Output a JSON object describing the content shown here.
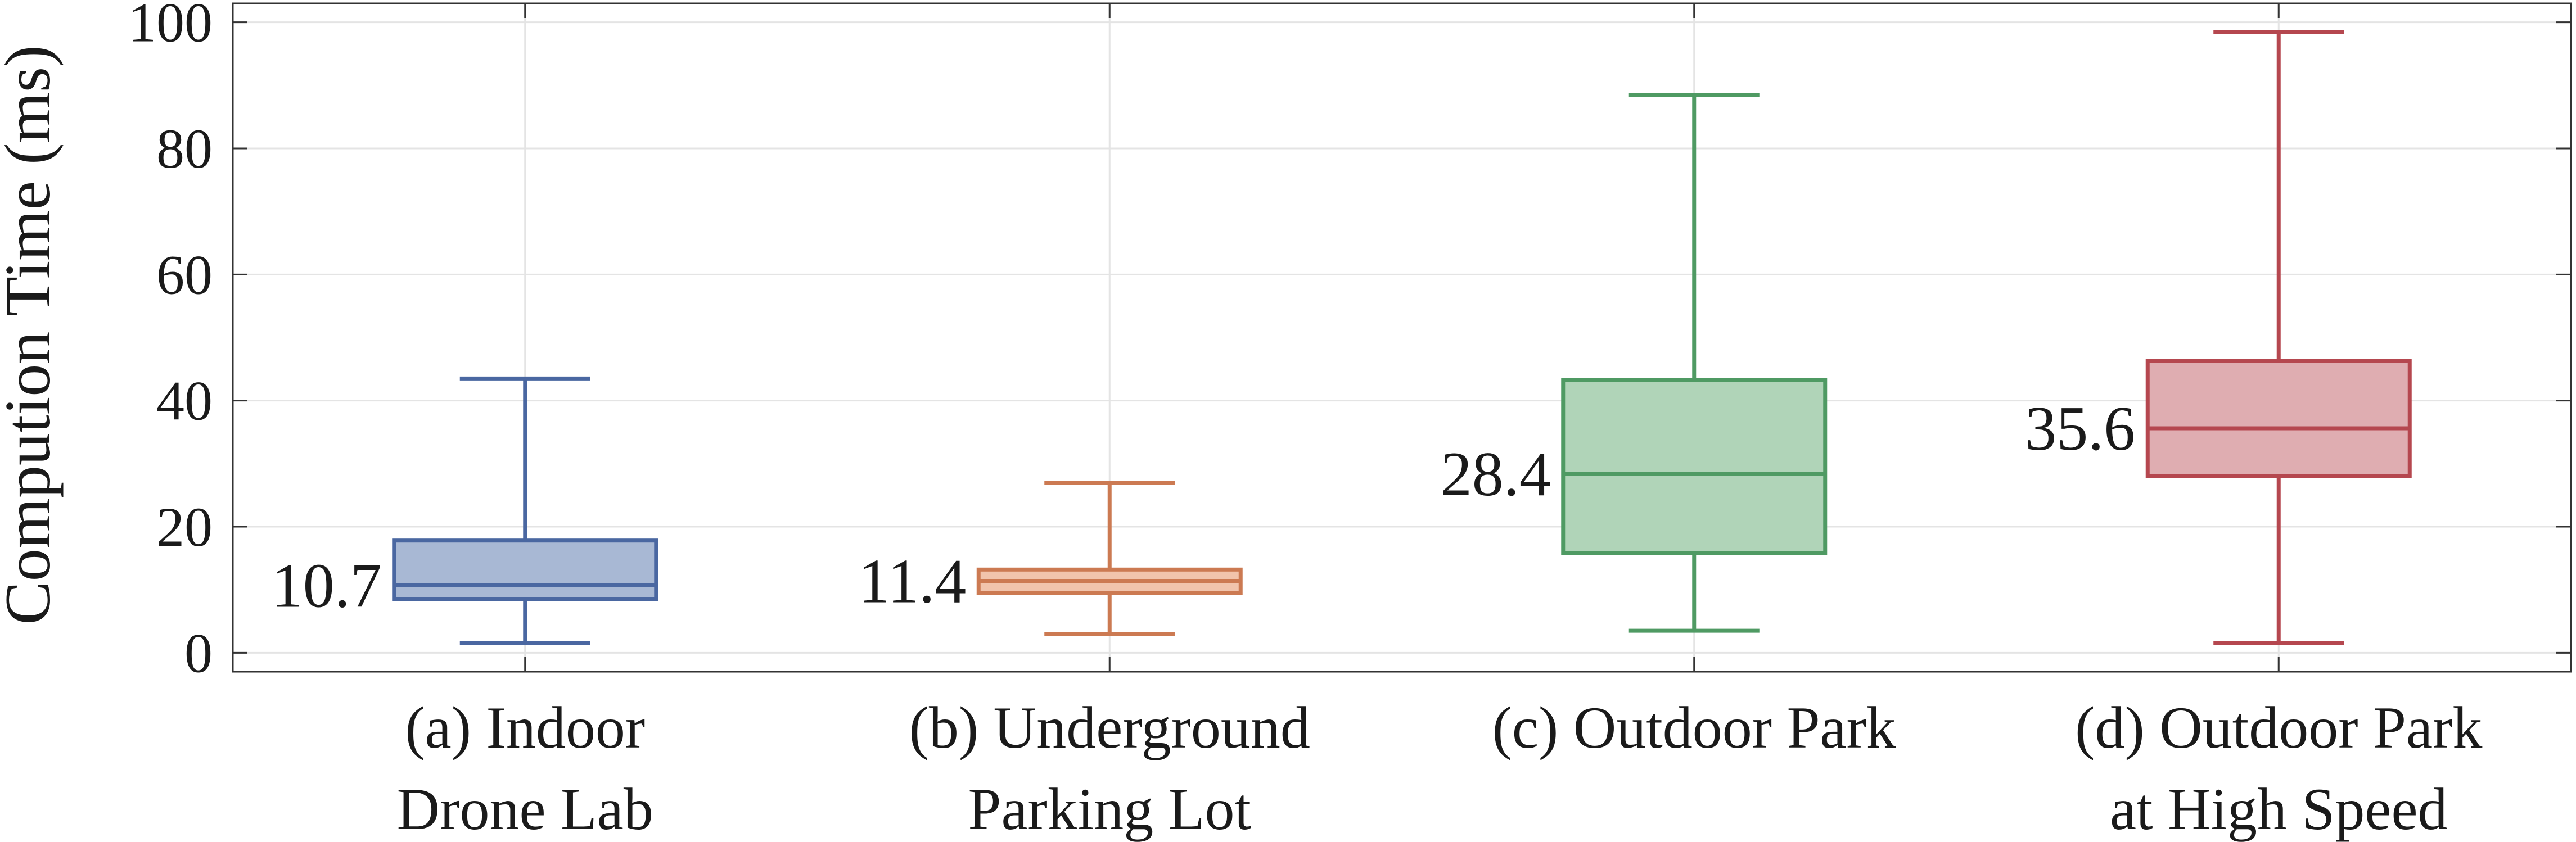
{
  "chart_data": {
    "type": "box",
    "title": "",
    "xlabel": "",
    "ylabel": "Compution Time (ms)",
    "ylim": [
      -3,
      103
    ],
    "yticks": [
      0,
      20,
      40,
      60,
      80,
      100
    ],
    "grid": true,
    "legend": "none",
    "categories": [
      [
        "(a) Indoor",
        "Drone Lab"
      ],
      [
        "(b) Underground",
        "Parking Lot"
      ],
      [
        "(c) Outdoor Park"
      ],
      [
        "(d) Outdoor Park",
        "at High Speed"
      ]
    ],
    "boxes": [
      {
        "whisker_low": 1.5,
        "q1": 8.5,
        "median": 10.7,
        "q3": 17.8,
        "whisker_high": 43.5,
        "median_label": "10.7",
        "color": "#4a67a1",
        "fill": "#a8b8d4"
      },
      {
        "whisker_low": 3.0,
        "q1": 9.5,
        "median": 11.4,
        "q3": 13.2,
        "whisker_high": 27.0,
        "median_label": "11.4",
        "color": "#cc7a52",
        "fill": "#f1c4ac"
      },
      {
        "whisker_low": 3.5,
        "q1": 15.8,
        "median": 28.4,
        "q3": 43.3,
        "whisker_high": 88.5,
        "median_label": "28.4",
        "color": "#4f9a63",
        "fill": "#b0d4b8"
      },
      {
        "whisker_low": 1.5,
        "q1": 28.0,
        "median": 35.6,
        "q3": 46.3,
        "whisker_high": 98.5,
        "median_label": "35.6",
        "color": "#b5474f",
        "fill": "#dfadb1"
      }
    ]
  }
}
